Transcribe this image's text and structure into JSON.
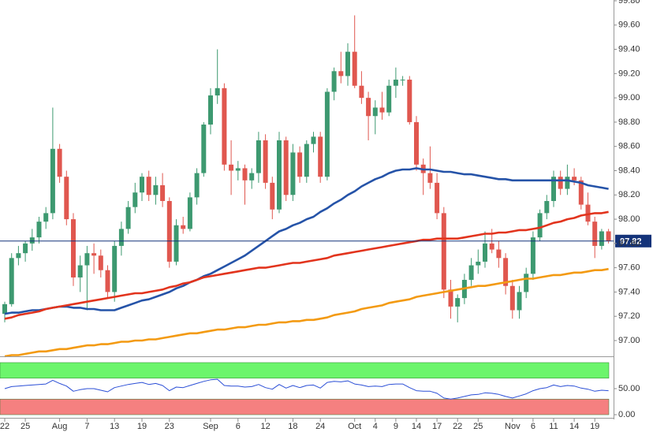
{
  "chart_data": [
    {
      "type": "candlestick",
      "categories": [
        "22",
        null,
        null,
        "25",
        null,
        null,
        null,
        null,
        "Aug",
        null,
        null,
        null,
        "7",
        null,
        null,
        null,
        "13",
        null,
        null,
        null,
        "19",
        null,
        null,
        null,
        "23",
        null,
        null,
        null,
        null,
        null,
        "Sep",
        null,
        null,
        null,
        "6",
        null,
        null,
        null,
        "12",
        null,
        null,
        null,
        "18",
        null,
        null,
        null,
        "24",
        null,
        null,
        null,
        null,
        "Oct",
        null,
        null,
        "4",
        null,
        null,
        "9",
        null,
        null,
        "14",
        null,
        null,
        "17",
        null,
        null,
        "22",
        null,
        null,
        "25",
        null,
        null,
        null,
        null,
        "Nov",
        null,
        null,
        "6",
        null,
        null,
        "11",
        null,
        null,
        "14",
        null,
        null,
        "19",
        null,
        null
      ],
      "open": [
        97.22,
        97.3,
        97.68,
        97.72,
        97.8,
        97.85,
        97.98,
        98.05,
        98.58,
        98.35,
        98.0,
        97.52,
        97.62,
        97.72,
        97.7,
        97.58,
        97.4,
        97.78,
        97.92,
        98.1,
        98.22,
        98.35,
        98.2,
        98.28,
        98.15,
        97.65,
        97.95,
        97.92,
        98.18,
        98.38,
        98.78,
        99.02,
        99.08,
        98.45,
        98.4,
        98.42,
        98.32,
        98.38,
        98.65,
        98.3,
        98.08,
        98.65,
        98.2,
        98.55,
        98.35,
        98.62,
        98.68,
        98.35,
        99.05,
        99.22,
        99.18,
        99.38,
        99.1,
        99.0,
        98.85,
        98.92,
        98.88,
        99.1,
        99.15,
        99.15,
        98.8,
        98.45,
        98.38,
        98.3,
        98.05,
        97.42,
        97.28,
        97.35,
        97.5,
        97.62,
        97.65,
        97.8,
        97.75,
        97.68,
        97.45,
        97.25,
        97.4,
        97.55,
        97.85,
        98.05,
        98.15,
        98.35,
        98.25,
        98.35,
        98.32,
        98.12,
        97.98,
        97.78,
        97.9
      ],
      "high": [
        97.32,
        97.72,
        97.78,
        97.82,
        97.92,
        98.02,
        98.1,
        98.92,
        98.62,
        98.4,
        98.05,
        97.7,
        97.78,
        97.8,
        97.75,
        97.62,
        97.82,
        97.98,
        98.15,
        98.3,
        98.38,
        98.4,
        98.35,
        98.38,
        98.18,
        98.0,
        98.02,
        98.22,
        98.42,
        98.8,
        99.08,
        99.4,
        99.12,
        98.65,
        98.48,
        98.45,
        98.42,
        98.72,
        98.7,
        98.35,
        98.72,
        98.68,
        98.62,
        98.6,
        98.65,
        98.72,
        98.72,
        99.08,
        99.25,
        99.38,
        99.45,
        99.68,
        99.22,
        99.05,
        98.98,
        99.05,
        99.15,
        99.25,
        99.18,
        99.18,
        98.85,
        98.5,
        98.6,
        98.38,
        98.1,
        97.5,
        97.38,
        97.55,
        97.68,
        97.75,
        97.9,
        97.92,
        97.82,
        97.72,
        97.5,
        97.45,
        97.6,
        97.9,
        98.08,
        98.2,
        98.4,
        98.4,
        98.45,
        98.42,
        98.35,
        98.22,
        98.02,
        97.92,
        97.92
      ],
      "low": [
        97.15,
        97.28,
        97.62,
        97.65,
        97.74,
        97.8,
        97.92,
        98.0,
        98.3,
        97.95,
        97.45,
        97.4,
        97.25,
        97.55,
        97.52,
        97.35,
        97.32,
        97.7,
        97.88,
        98.05,
        98.15,
        98.15,
        98.12,
        98.1,
        97.6,
        97.62,
        97.88,
        97.9,
        98.12,
        98.35,
        98.7,
        98.95,
        98.4,
        98.2,
        98.32,
        98.12,
        98.25,
        98.3,
        98.25,
        98.0,
        98.05,
        98.15,
        98.15,
        98.3,
        98.3,
        98.55,
        98.3,
        98.32,
        98.98,
        99.12,
        99.1,
        99.08,
        98.95,
        98.65,
        98.7,
        98.82,
        98.85,
        99.0,
        99.1,
        98.78,
        98.4,
        98.2,
        98.25,
        98.0,
        97.35,
        97.18,
        97.15,
        97.3,
        97.45,
        97.55,
        97.6,
        97.72,
        97.6,
        97.38,
        97.18,
        97.18,
        97.35,
        97.5,
        97.82,
        98.0,
        98.1,
        98.2,
        98.2,
        98.28,
        98.08,
        97.95,
        97.68,
        97.75,
        97.8
      ],
      "close": [
        97.3,
        97.68,
        97.72,
        97.8,
        97.85,
        97.98,
        98.05,
        98.58,
        98.35,
        98.0,
        97.52,
        97.62,
        97.72,
        97.7,
        97.58,
        97.4,
        97.78,
        97.92,
        98.1,
        98.22,
        98.35,
        98.2,
        98.28,
        98.15,
        97.65,
        97.95,
        97.92,
        98.18,
        98.38,
        98.78,
        99.02,
        99.08,
        98.45,
        98.4,
        98.42,
        98.32,
        98.38,
        98.65,
        98.3,
        98.08,
        98.65,
        98.2,
        98.55,
        98.35,
        98.62,
        98.68,
        98.35,
        99.05,
        99.22,
        99.18,
        99.38,
        99.1,
        99.0,
        98.85,
        98.92,
        98.88,
        99.1,
        99.15,
        99.15,
        98.8,
        98.45,
        98.38,
        98.3,
        98.05,
        97.42,
        97.28,
        97.35,
        97.5,
        97.62,
        97.65,
        97.8,
        97.75,
        97.68,
        97.45,
        97.25,
        97.4,
        97.55,
        97.85,
        98.05,
        98.15,
        98.35,
        98.25,
        98.35,
        98.32,
        98.12,
        97.98,
        97.78,
        97.9,
        97.82
      ],
      "up_color": "#3d9970",
      "down_color": "#e0574f",
      "series": [
        {
          "color": "#2553a8",
          "values": [
            97.22,
            97.23,
            97.23,
            97.24,
            97.25,
            97.25,
            97.26,
            97.27,
            97.28,
            97.28,
            97.27,
            97.27,
            97.26,
            97.26,
            97.25,
            97.25,
            97.25,
            97.27,
            97.29,
            97.31,
            97.33,
            97.34,
            97.36,
            97.38,
            97.4,
            97.43,
            97.45,
            97.48,
            97.5,
            97.53,
            97.55,
            97.58,
            97.61,
            97.64,
            97.67,
            97.7,
            97.74,
            97.78,
            97.82,
            97.86,
            97.9,
            97.92,
            97.95,
            97.97,
            98.0,
            98.02,
            98.06,
            98.09,
            98.13,
            98.16,
            98.2,
            98.23,
            98.27,
            98.3,
            98.33,
            98.35,
            98.38,
            98.4,
            98.41,
            98.41,
            98.42,
            98.41,
            98.41,
            98.4,
            98.39,
            98.39,
            98.38,
            98.37,
            98.37,
            98.36,
            98.35,
            98.34,
            98.33,
            98.33,
            98.32,
            98.32,
            98.32,
            98.32,
            98.32,
            98.32,
            98.32,
            98.32,
            98.32,
            98.31,
            98.3,
            98.28,
            98.27,
            98.26,
            98.25
          ]
        },
        {
          "color": "#e2341d",
          "values": [
            97.18,
            97.19,
            97.21,
            97.22,
            97.23,
            97.24,
            97.26,
            97.27,
            97.28,
            97.29,
            97.3,
            97.31,
            97.32,
            97.33,
            97.34,
            97.35,
            97.36,
            97.37,
            97.38,
            97.39,
            97.39,
            97.4,
            97.41,
            97.42,
            97.44,
            97.45,
            97.47,
            97.48,
            97.5,
            97.52,
            97.53,
            97.54,
            97.55,
            97.56,
            97.57,
            97.58,
            97.59,
            97.6,
            97.6,
            97.61,
            97.62,
            97.63,
            97.64,
            97.64,
            97.65,
            97.66,
            97.67,
            97.68,
            97.7,
            97.71,
            97.72,
            97.73,
            97.74,
            97.75,
            97.76,
            97.77,
            97.78,
            97.79,
            97.8,
            97.81,
            97.82,
            97.83,
            97.83,
            97.84,
            97.84,
            97.84,
            97.84,
            97.85,
            97.86,
            97.87,
            97.88,
            97.88,
            97.89,
            97.89,
            97.9,
            97.91,
            97.91,
            97.92,
            97.93,
            97.95,
            97.97,
            97.98,
            98.0,
            98.01,
            98.03,
            98.04,
            98.05,
            98.05,
            98.06
          ]
        },
        {
          "color": "#f39a12",
          "values": [
            96.87,
            96.88,
            96.88,
            96.89,
            96.9,
            96.91,
            96.91,
            96.92,
            96.93,
            96.93,
            96.94,
            96.95,
            96.96,
            96.96,
            96.97,
            96.97,
            96.98,
            96.99,
            96.99,
            97.0,
            97.0,
            97.01,
            97.01,
            97.02,
            97.03,
            97.04,
            97.05,
            97.06,
            97.06,
            97.07,
            97.08,
            97.09,
            97.09,
            97.1,
            97.11,
            97.11,
            97.12,
            97.13,
            97.13,
            97.14,
            97.15,
            97.15,
            97.16,
            97.16,
            97.17,
            97.17,
            97.18,
            97.19,
            97.21,
            97.22,
            97.23,
            97.24,
            97.26,
            97.27,
            97.28,
            97.29,
            97.31,
            97.32,
            97.33,
            97.34,
            97.36,
            97.37,
            97.38,
            97.39,
            97.4,
            97.41,
            97.42,
            97.43,
            97.44,
            97.45,
            97.45,
            97.46,
            97.47,
            97.48,
            97.49,
            97.5,
            97.51,
            97.51,
            97.52,
            97.53,
            97.54,
            97.54,
            97.55,
            97.56,
            97.56,
            97.57,
            97.58,
            97.58,
            97.59
          ]
        }
      ],
      "price_tag": "97.82",
      "price_tag_color": "#14337a",
      "ylim": [
        96.87,
        99.8
      ],
      "yticks": [
        {
          "value": 97,
          "label": "97.00"
        },
        {
          "value": 97.2,
          "label": "97.20"
        },
        {
          "value": 97.4,
          "label": "97.40"
        },
        {
          "value": 97.6,
          "label": "97.60"
        },
        {
          "value": 97.8,
          "label": "97.80"
        },
        {
          "value": 98,
          "label": "98.00"
        },
        {
          "value": 98.2,
          "label": "98.20"
        },
        {
          "value": 98.4,
          "label": "98.40"
        },
        {
          "value": 98.6,
          "label": "98.60"
        },
        {
          "value": 98.8,
          "label": "98.80"
        },
        {
          "value": 99,
          "label": "99.00"
        },
        {
          "value": 99.2,
          "label": "99.20"
        },
        {
          "value": 99.4,
          "label": "99.40"
        },
        {
          "value": 99.6,
          "label": "99.60"
        },
        {
          "value": 99.8,
          "label": "99.80"
        }
      ]
    },
    {
      "type": "line",
      "series": [
        {
          "color": "#2b4fd6",
          "values": [
            50,
            54,
            55,
            56,
            57,
            58,
            59,
            66,
            60,
            55,
            45,
            48,
            50,
            50,
            47,
            44,
            52,
            55,
            58,
            60,
            62,
            58,
            60,
            56,
            46,
            53,
            52,
            56,
            60,
            64,
            67,
            68,
            56,
            55,
            55,
            53,
            54,
            58,
            52,
            49,
            58,
            51,
            56,
            52,
            56,
            57,
            51,
            62,
            64,
            63,
            65,
            59,
            57,
            54,
            55,
            54,
            58,
            59,
            59,
            52,
            46,
            45,
            45,
            41,
            32,
            30,
            32,
            35,
            38,
            39,
            42,
            41,
            39,
            35,
            32,
            36,
            40,
            46,
            50,
            52,
            57,
            54,
            56,
            55,
            51,
            49,
            45,
            47,
            46
          ]
        }
      ],
      "bands": [
        {
          "from": 70,
          "to": 100,
          "color": "#6cf56c"
        },
        {
          "from": 0,
          "to": 30,
          "color": "#f58080"
        }
      ],
      "ylim": [
        -6,
        106
      ],
      "yticks": [
        {
          "value": 50,
          "label": "50.00"
        },
        {
          "value": 0,
          "label": "0.00"
        }
      ]
    }
  ]
}
